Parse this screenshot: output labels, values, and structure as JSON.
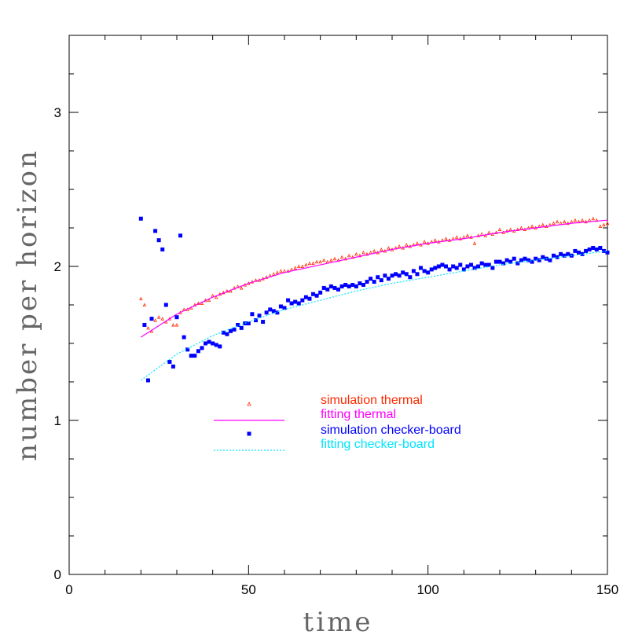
{
  "chart_data": {
    "type": "scatter",
    "xlabel": "time",
    "ylabel": "number per horizon",
    "xlim": [
      0,
      150
    ],
    "ylim": [
      0,
      3.5
    ],
    "xticks": [
      0,
      50,
      100,
      150
    ],
    "yticks": [
      0,
      1,
      2,
      3
    ],
    "xminorticks": [
      10,
      20,
      30,
      40,
      60,
      70,
      80,
      90,
      110,
      120,
      130,
      140
    ],
    "yminorticks": [
      0.25,
      0.5,
      0.75,
      1.25,
      1.5,
      1.75,
      2.25,
      2.5,
      2.75,
      3.25
    ],
    "legend": "center",
    "x": [
      20,
      21,
      22,
      23,
      24,
      25,
      26,
      27,
      28,
      29,
      30,
      31,
      32,
      33,
      34,
      35,
      36,
      37,
      38,
      39,
      40,
      41,
      42,
      43,
      44,
      45,
      46,
      47,
      48,
      49,
      50,
      51,
      52,
      53,
      54,
      55,
      56,
      57,
      58,
      59,
      60,
      61,
      62,
      63,
      64,
      65,
      66,
      67,
      68,
      69,
      70,
      71,
      72,
      73,
      74,
      75,
      76,
      77,
      78,
      79,
      80,
      81,
      82,
      83,
      84,
      85,
      86,
      87,
      88,
      89,
      90,
      91,
      92,
      93,
      94,
      95,
      96,
      97,
      98,
      99,
      100,
      101,
      102,
      103,
      104,
      105,
      106,
      107,
      108,
      109,
      110,
      111,
      112,
      113,
      114,
      115,
      116,
      117,
      118,
      119,
      120,
      121,
      122,
      123,
      124,
      125,
      126,
      127,
      128,
      129,
      130,
      131,
      132,
      133,
      134,
      135,
      136,
      137,
      138,
      139,
      140,
      141,
      142,
      143,
      144,
      145,
      146,
      147,
      148,
      149,
      150
    ],
    "series": [
      {
        "name": "simulation thermal",
        "color": "#ff2a00",
        "marker": "triangle",
        "values": [
          1.79,
          1.75,
          1.6,
          1.58,
          1.65,
          1.67,
          1.66,
          1.64,
          1.66,
          1.62,
          1.62,
          1.7,
          1.72,
          1.72,
          1.73,
          1.75,
          1.76,
          1.76,
          1.78,
          1.78,
          1.81,
          1.8,
          1.82,
          1.83,
          1.84,
          1.84,
          1.86,
          1.87,
          1.86,
          1.88,
          1.89,
          1.9,
          1.91,
          1.91,
          1.92,
          1.93,
          1.94,
          1.95,
          1.96,
          1.97,
          1.97,
          1.97,
          1.98,
          1.99,
          2.0,
          2.0,
          2.01,
          2.02,
          2.02,
          2.03,
          2.03,
          2.04,
          2.03,
          2.04,
          2.05,
          2.04,
          2.06,
          2.05,
          2.07,
          2.06,
          2.08,
          2.07,
          2.09,
          2.08,
          2.09,
          2.1,
          2.09,
          2.11,
          2.1,
          2.12,
          2.11,
          2.12,
          2.13,
          2.12,
          2.14,
          2.13,
          2.14,
          2.15,
          2.14,
          2.16,
          2.15,
          2.16,
          2.17,
          2.16,
          2.17,
          2.18,
          2.17,
          2.18,
          2.19,
          2.18,
          2.19,
          2.2,
          2.19,
          2.15,
          2.2,
          2.21,
          2.2,
          2.22,
          2.21,
          2.22,
          2.24,
          2.22,
          2.23,
          2.24,
          2.23,
          2.24,
          2.25,
          2.24,
          2.25,
          2.26,
          2.25,
          2.26,
          2.27,
          2.26,
          2.27,
          2.28,
          2.29,
          2.28,
          2.29,
          2.28,
          2.29,
          2.3,
          2.29,
          2.3,
          2.29,
          2.3,
          2.31,
          2.3,
          2.26,
          2.27,
          2.28
        ]
      },
      {
        "name": "fitting thermal",
        "color": "#ff00ff",
        "marker": "line",
        "x": [
          20,
          30,
          40,
          50,
          60,
          70,
          80,
          90,
          100,
          110,
          120,
          130,
          140,
          150
        ],
        "values": [
          1.54,
          1.69,
          1.8,
          1.89,
          1.96,
          2.01,
          2.06,
          2.11,
          2.15,
          2.18,
          2.22,
          2.25,
          2.28,
          2.3
        ]
      },
      {
        "name": "simulation checker-board",
        "color": "#0000ff",
        "marker": "square",
        "values": [
          2.31,
          1.62,
          1.26,
          1.66,
          2.23,
          2.17,
          2.11,
          1.75,
          1.38,
          1.35,
          1.67,
          2.2,
          1.54,
          1.46,
          1.42,
          1.42,
          1.45,
          1.47,
          1.5,
          1.51,
          1.5,
          1.49,
          1.48,
          1.57,
          1.56,
          1.58,
          1.59,
          1.62,
          1.6,
          1.63,
          1.63,
          1.69,
          1.65,
          1.68,
          1.64,
          1.7,
          1.72,
          1.71,
          1.7,
          1.74,
          1.73,
          1.78,
          1.76,
          1.77,
          1.76,
          1.78,
          1.8,
          1.79,
          1.82,
          1.81,
          1.83,
          1.86,
          1.85,
          1.87,
          1.86,
          1.85,
          1.87,
          1.88,
          1.87,
          1.88,
          1.87,
          1.89,
          1.88,
          1.9,
          1.92,
          1.9,
          1.93,
          1.91,
          1.94,
          1.92,
          1.94,
          1.95,
          1.94,
          1.96,
          1.95,
          1.93,
          1.97,
          1.95,
          1.99,
          1.97,
          1.96,
          1.98,
          1.99,
          2.0,
          2.01,
          2.0,
          1.98,
          2.0,
          1.99,
          2.01,
          1.98,
          2.0,
          2.01,
          1.99,
          2.0,
          2.02,
          2.01,
          2.01,
          1.99,
          2.03,
          2.03,
          2.02,
          2.04,
          2.03,
          2.05,
          2.02,
          2.04,
          2.05,
          2.04,
          2.03,
          2.05,
          2.04,
          2.06,
          2.05,
          2.04,
          2.07,
          2.06,
          2.08,
          2.07,
          2.08,
          2.07,
          2.1,
          2.09,
          2.08,
          2.1,
          2.11,
          2.12,
          2.11,
          2.12,
          2.1,
          2.09
        ]
      },
      {
        "name": "fitting checker-board",
        "color": "#00e5ff",
        "marker": "dotted",
        "x": [
          20,
          30,
          40,
          50,
          60,
          70,
          80,
          90,
          100,
          110,
          120,
          130,
          140,
          150
        ],
        "values": [
          1.26,
          1.43,
          1.55,
          1.64,
          1.72,
          1.78,
          1.84,
          1.89,
          1.93,
          1.97,
          2.01,
          2.04,
          2.07,
          2.1
        ]
      }
    ]
  }
}
